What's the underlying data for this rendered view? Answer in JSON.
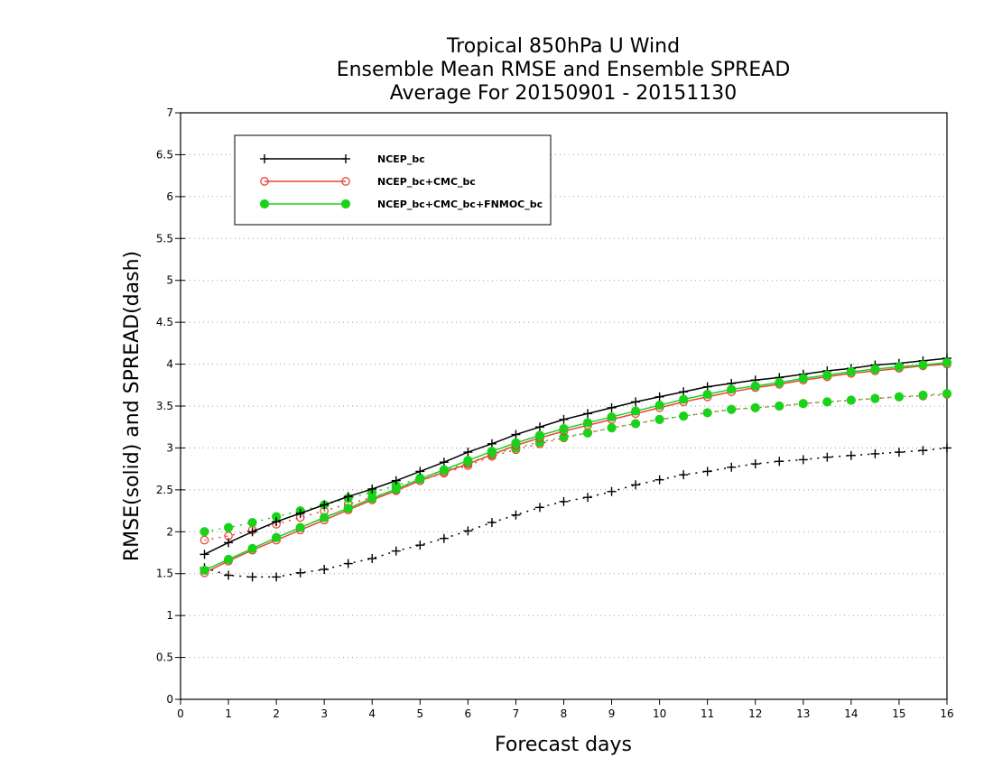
{
  "chart_data": {
    "type": "line",
    "title": [
      "Tropical 850hPa U Wind",
      "Ensemble Mean RMSE and Ensemble SPREAD",
      "Average For 20150901 - 20151130"
    ],
    "xlabel": "Forecast days",
    "ylabel": "RMSE(solid) and SPREAD(dash)",
    "xlim": [
      0,
      16
    ],
    "ylim": [
      0,
      7
    ],
    "xticks": [
      "0",
      "1",
      "2",
      "3",
      "4",
      "5",
      "6",
      "7",
      "8",
      "9",
      "10",
      "11",
      "12",
      "13",
      "14",
      "15",
      "16"
    ],
    "yticks": [
      "0",
      "0.5",
      "1",
      "1.5",
      "2",
      "2.5",
      "3",
      "3.5",
      "4",
      "4.5",
      "5",
      "5.5",
      "6",
      "6.5",
      "7"
    ],
    "grid": true,
    "legend_position": "top-left",
    "x": [
      0.5,
      1,
      1.5,
      2,
      2.5,
      3,
      3.5,
      4,
      4.5,
      5,
      5.5,
      6,
      6.5,
      7,
      7.5,
      8,
      8.5,
      9,
      9.5,
      10,
      10.5,
      11,
      11.5,
      12,
      12.5,
      13,
      13.5,
      14,
      14.5,
      15,
      15.5,
      16
    ],
    "series": [
      {
        "name": "NCEP_bc",
        "color": "#000000",
        "marker": "plus",
        "rmse": [
          1.73,
          1.87,
          2.0,
          2.12,
          2.22,
          2.32,
          2.42,
          2.51,
          2.61,
          2.72,
          2.83,
          2.95,
          3.05,
          3.16,
          3.25,
          3.34,
          3.41,
          3.48,
          3.55,
          3.61,
          3.67,
          3.73,
          3.77,
          3.81,
          3.84,
          3.88,
          3.92,
          3.95,
          3.99,
          4.01,
          4.04,
          4.07
        ],
        "spread": [
          1.57,
          1.48,
          1.46,
          1.46,
          1.51,
          1.55,
          1.62,
          1.68,
          1.77,
          1.84,
          1.92,
          2.01,
          2.11,
          2.2,
          2.29,
          2.36,
          2.41,
          2.48,
          2.56,
          2.62,
          2.68,
          2.72,
          2.77,
          2.81,
          2.84,
          2.86,
          2.89,
          2.91,
          2.93,
          2.95,
          2.97,
          3.0
        ]
      },
      {
        "name": "NCEP_bc+CMC_bc",
        "color": "#e8443a",
        "marker": "open-circle",
        "rmse": [
          1.51,
          1.65,
          1.78,
          1.9,
          2.02,
          2.14,
          2.26,
          2.38,
          2.49,
          2.61,
          2.71,
          2.81,
          2.92,
          3.03,
          3.12,
          3.2,
          3.27,
          3.34,
          3.41,
          3.48,
          3.55,
          3.61,
          3.67,
          3.72,
          3.76,
          3.81,
          3.85,
          3.89,
          3.92,
          3.95,
          3.98,
          4.0
        ],
        "spread": [
          1.9,
          1.95,
          2.02,
          2.09,
          2.17,
          2.25,
          2.33,
          2.41,
          2.5,
          2.61,
          2.7,
          2.79,
          2.9,
          2.98,
          3.05,
          3.12,
          3.18,
          3.24,
          3.29,
          3.34,
          3.38,
          3.42,
          3.46,
          3.48,
          3.5,
          3.53,
          3.55,
          3.57,
          3.59,
          3.61,
          3.62,
          3.64
        ]
      },
      {
        "name": "NCEP_bc+CMC_bc+FNMOC_bc",
        "color": "#1ad21a",
        "marker": "filled-circle",
        "rmse": [
          1.54,
          1.67,
          1.8,
          1.93,
          2.05,
          2.17,
          2.28,
          2.4,
          2.51,
          2.63,
          2.74,
          2.85,
          2.96,
          3.06,
          3.15,
          3.23,
          3.3,
          3.37,
          3.44,
          3.51,
          3.58,
          3.64,
          3.7,
          3.74,
          3.78,
          3.83,
          3.87,
          3.91,
          3.94,
          3.97,
          3.99,
          4.02
        ],
        "spread": [
          2.0,
          2.05,
          2.11,
          2.18,
          2.25,
          2.32,
          2.4,
          2.47,
          2.55,
          2.64,
          2.73,
          2.82,
          2.92,
          3.0,
          3.07,
          3.13,
          3.18,
          3.24,
          3.29,
          3.34,
          3.38,
          3.42,
          3.46,
          3.48,
          3.5,
          3.53,
          3.55,
          3.57,
          3.59,
          3.61,
          3.63,
          3.65
        ]
      }
    ]
  }
}
